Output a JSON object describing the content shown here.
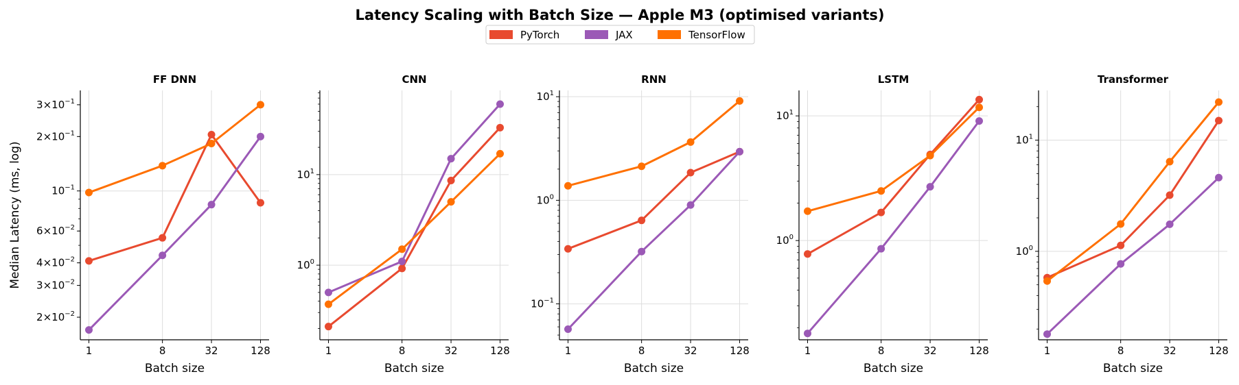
{
  "title": "Latency Scaling with Batch Size — Apple M3  (optimised variants)",
  "legend": [
    {
      "label": "PyTorch",
      "color": "#e84a2f"
    },
    {
      "label": "JAX",
      "color": "#9b59b6"
    },
    {
      "label": "TensorFlow",
      "color": "#ff7000"
    }
  ],
  "chart_data": [
    {
      "type": "line",
      "title": "FF DNN",
      "xlabel": "Batch size",
      "ylabel": "Median Latency (ms, log)",
      "xscale": "log",
      "yscale": "log",
      "x": [
        1,
        8,
        32,
        128
      ],
      "xticks": [
        "1",
        "8",
        "32",
        "128"
      ],
      "ylim": [
        0.015,
        0.36
      ],
      "yticks": [
        {
          "value": 0.02,
          "mant": "2",
          "exp": "−2",
          "major": false
        },
        {
          "value": 0.03,
          "mant": "3",
          "exp": "−2",
          "major": false
        },
        {
          "value": 0.04,
          "mant": "4",
          "exp": "−2",
          "major": false
        },
        {
          "value": 0.06,
          "mant": "6",
          "exp": "−2",
          "major": false
        },
        {
          "value": 0.1,
          "mant": "",
          "exp": "−1",
          "major": true
        },
        {
          "value": 0.2,
          "mant": "2",
          "exp": "−1",
          "major": false
        },
        {
          "value": 0.3,
          "mant": "3",
          "exp": "−1",
          "major": false
        }
      ],
      "series": [
        {
          "name": "PyTorch",
          "values": [
            0.041,
            0.055,
            0.205,
            0.086
          ]
        },
        {
          "name": "JAX",
          "values": [
            0.017,
            0.044,
            0.084,
            0.2
          ]
        },
        {
          "name": "TensorFlow",
          "values": [
            0.098,
            0.138,
            0.183,
            0.3
          ]
        }
      ],
      "grid": true
    },
    {
      "type": "line",
      "title": "CNN",
      "xlabel": "Batch size",
      "ylabel": "",
      "xscale": "log",
      "yscale": "log",
      "x": [
        1,
        8,
        32,
        128
      ],
      "xticks": [
        "1",
        "8",
        "32",
        "128"
      ],
      "ylim": [
        0.15,
        85
      ],
      "yticks": [
        {
          "value": 1,
          "mant": "",
          "exp": "0",
          "major": true
        },
        {
          "value": 10,
          "mant": "",
          "exp": "1",
          "major": true
        }
      ],
      "series": [
        {
          "name": "PyTorch",
          "values": [
            0.21,
            0.92,
            8.6,
            33
          ]
        },
        {
          "name": "JAX",
          "values": [
            0.5,
            1.1,
            15,
            60
          ]
        },
        {
          "name": "TensorFlow",
          "values": [
            0.37,
            1.5,
            5.0,
            17
          ]
        }
      ],
      "grid": true
    },
    {
      "type": "line",
      "title": "RNN",
      "xlabel": "Batch size",
      "ylabel": "",
      "xscale": "log",
      "yscale": "log",
      "x": [
        1,
        8,
        32,
        128
      ],
      "xticks": [
        "1",
        "8",
        "32",
        "128"
      ],
      "ylim": [
        0.045,
        11.5
      ],
      "yticks": [
        {
          "value": 0.1,
          "mant": "",
          "exp": "−1",
          "major": true
        },
        {
          "value": 1,
          "mant": "",
          "exp": "0",
          "major": true
        },
        {
          "value": 10,
          "mant": "",
          "exp": "1",
          "major": true
        }
      ],
      "series": [
        {
          "name": "PyTorch",
          "values": [
            0.34,
            0.64,
            1.85,
            2.95
          ]
        },
        {
          "name": "JAX",
          "values": [
            0.057,
            0.32,
            0.9,
            2.95
          ]
        },
        {
          "name": "TensorFlow",
          "values": [
            1.38,
            2.13,
            3.65,
            9.1
          ]
        }
      ],
      "grid": true
    },
    {
      "type": "line",
      "title": "LSTM",
      "xlabel": "Batch size",
      "ylabel": "",
      "xscale": "log",
      "yscale": "log",
      "x": [
        1,
        8,
        32,
        128
      ],
      "xticks": [
        "1",
        "8",
        "32",
        "128"
      ],
      "ylim": [
        0.16,
        16
      ],
      "yticks": [
        {
          "value": 1,
          "mant": "",
          "exp": "0",
          "major": true
        },
        {
          "value": 10,
          "mant": "",
          "exp": "1",
          "major": true
        }
      ],
      "series": [
        {
          "name": "PyTorch",
          "values": [
            0.78,
            1.68,
            4.9,
            13.5
          ]
        },
        {
          "name": "JAX",
          "values": [
            0.18,
            0.86,
            2.7,
            9.1
          ]
        },
        {
          "name": "TensorFlow",
          "values": [
            1.72,
            2.5,
            4.8,
            11.7
          ]
        }
      ],
      "grid": true
    },
    {
      "type": "line",
      "title": "Transformer",
      "xlabel": "Batch size",
      "ylabel": "",
      "xscale": "log",
      "yscale": "log",
      "x": [
        1,
        8,
        32,
        128
      ],
      "xticks": [
        "1",
        "8",
        "32",
        "128"
      ],
      "ylim": [
        0.16,
        28
      ],
      "yticks": [
        {
          "value": 1,
          "mant": "",
          "exp": "0",
          "major": true
        },
        {
          "value": 10,
          "mant": "",
          "exp": "1",
          "major": true
        }
      ],
      "series": [
        {
          "name": "PyTorch",
          "values": [
            0.58,
            1.13,
            3.2,
            15
          ]
        },
        {
          "name": "JAX",
          "values": [
            0.18,
            0.77,
            1.75,
            4.6
          ]
        },
        {
          "name": "TensorFlow",
          "values": [
            0.54,
            1.76,
            6.4,
            22
          ]
        }
      ],
      "grid": true
    }
  ]
}
